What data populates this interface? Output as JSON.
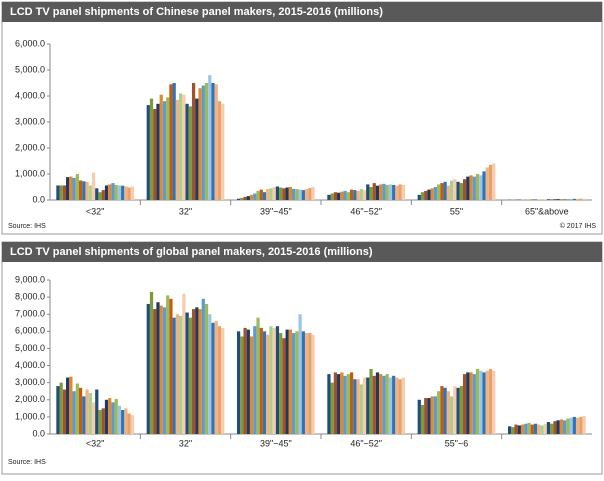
{
  "chart_data": [
    {
      "type": "bar",
      "title": "LCD TV panel shipments of Chinese panel makers, 2015-2016  (millions)",
      "categories": [
        "<32\"",
        "32\"",
        "39\"~45\"",
        "46\"~52\"",
        "55\"",
        "65\"&above"
      ],
      "ylim": [
        0,
        6000
      ],
      "yticks": [
        {
          "value": 0,
          "label": "0.0"
        },
        {
          "value": 1000,
          "label": "1,000.0"
        },
        {
          "value": 2000,
          "label": "2,000.0"
        },
        {
          "value": 3000,
          "label": "3,000.0"
        },
        {
          "value": 4000,
          "label": "4,000.0"
        },
        {
          "value": 5000,
          "label": "5,000.0"
        },
        {
          "value": 6000,
          "label": "6,000.0"
        }
      ],
      "grid": false,
      "source": "Source: IHS",
      "copyright": "© 2017 IHS",
      "series": [
        {
          "color": "#1f4e79",
          "values": [
            560,
            3650,
            50,
            200,
            200,
            10
          ]
        },
        {
          "color": "#7f9a3b",
          "values": [
            560,
            3900,
            80,
            250,
            300,
            10
          ]
        },
        {
          "color": "#a0522d",
          "values": [
            560,
            3500,
            120,
            300,
            350,
            15
          ]
        },
        {
          "color": "#1f3864",
          "values": [
            880,
            3700,
            150,
            280,
            400,
            15
          ]
        },
        {
          "color": "#e08a2e",
          "values": [
            900,
            4050,
            200,
            320,
            450,
            20
          ]
        },
        {
          "color": "#5b9bd5",
          "values": [
            850,
            3800,
            250,
            350,
            500,
            20
          ]
        },
        {
          "color": "#9bbb59",
          "values": [
            1000,
            3950,
            350,
            300,
            600,
            20
          ]
        },
        {
          "color": "#c55a11",
          "values": [
            750,
            4450,
            400,
            400,
            650,
            25
          ]
        },
        {
          "color": "#2e75b6",
          "values": [
            720,
            4500,
            300,
            380,
            700,
            25
          ]
        },
        {
          "color": "#f4b183",
          "values": [
            700,
            3850,
            420,
            350,
            550,
            25
          ]
        },
        {
          "color": "#a9d18e",
          "values": [
            560,
            4100,
            450,
            420,
            750,
            30
          ]
        },
        {
          "color": "#f8cbad",
          "values": [
            1050,
            4050,
            500,
            380,
            800,
            30
          ]
        },
        {
          "color": "#1f4e79",
          "values": [
            450,
            3700,
            520,
            600,
            700,
            30
          ]
        },
        {
          "color": "#7f9a3b",
          "values": [
            300,
            3600,
            480,
            500,
            650,
            30
          ]
        },
        {
          "color": "#a0522d",
          "values": [
            380,
            4500,
            450,
            650,
            800,
            35
          ]
        },
        {
          "color": "#1f3864",
          "values": [
            560,
            3900,
            480,
            550,
            900,
            35
          ]
        },
        {
          "color": "#e08a2e",
          "values": [
            600,
            4300,
            500,
            600,
            950,
            35
          ]
        },
        {
          "color": "#5b9bd5",
          "values": [
            650,
            4400,
            430,
            620,
            900,
            40
          ]
        },
        {
          "color": "#9bbb59",
          "values": [
            580,
            4500,
            420,
            580,
            1000,
            40
          ]
        },
        {
          "color": "#9dc3e6",
          "values": [
            560,
            4800,
            400,
            600,
            950,
            40
          ]
        },
        {
          "color": "#2e75b6",
          "values": [
            550,
            4500,
            380,
            580,
            1100,
            45
          ]
        },
        {
          "color": "#f4b183",
          "values": [
            520,
            4450,
            420,
            550,
            1250,
            45
          ]
        },
        {
          "color": "#e2a46a",
          "values": [
            480,
            3800,
            460,
            600,
            1350,
            50
          ]
        },
        {
          "color": "#f8cbad",
          "values": [
            520,
            3700,
            500,
            580,
            1400,
            50
          ]
        }
      ]
    },
    {
      "type": "bar",
      "title": "LCD TV panel shipments of global panel makers, 2015-2016 (millions)",
      "categories": [
        "<32\"",
        "32\"",
        "39\"~45\"",
        "46\"~52\"",
        "55\"~6",
        null
      ],
      "ylim": [
        0,
        9000
      ],
      "yticks": [
        {
          "value": 0,
          "label": "0.0"
        },
        {
          "value": 1000,
          "label": "1,000.0"
        },
        {
          "value": 2000,
          "label": "2,000.0"
        },
        {
          "value": 3000,
          "label": "3,000.0"
        },
        {
          "value": 4000,
          "label": "4,000.0"
        },
        {
          "value": 5000,
          "label": "5,000.0"
        },
        {
          "value": 6000,
          "label": "6,000.0"
        },
        {
          "value": 7000,
          "label": "7,000.0"
        },
        {
          "value": 8000,
          "label": "8,000.0"
        },
        {
          "value": 9000,
          "label": "9,000.0"
        }
      ],
      "grid": false,
      "source": "Source: IHS",
      "series": [
        {
          "color": "#1f4e79",
          "values": [
            2800,
            7600,
            6000,
            3500,
            2000,
            450
          ]
        },
        {
          "color": "#7f9a3b",
          "values": [
            3000,
            8300,
            5700,
            3000,
            1700,
            400
          ]
        },
        {
          "color": "#a0522d",
          "values": [
            2600,
            7300,
            6200,
            3600,
            2100,
            550
          ]
        },
        {
          "color": "#1f3864",
          "values": [
            3300,
            7700,
            6100,
            3500,
            2100,
            500
          ]
        },
        {
          "color": "#e08a2e",
          "values": [
            3350,
            7500,
            5700,
            3600,
            2200,
            550
          ]
        },
        {
          "color": "#5b9bd5",
          "values": [
            2500,
            7400,
            6300,
            3400,
            2200,
            600
          ]
        },
        {
          "color": "#9bbb59",
          "values": [
            2950,
            8100,
            6800,
            3500,
            2500,
            650
          ]
        },
        {
          "color": "#c55a11",
          "values": [
            2700,
            7900,
            6200,
            3600,
            2800,
            550
          ]
        },
        {
          "color": "#2e75b6",
          "values": [
            2200,
            6800,
            6000,
            3200,
            2700,
            600
          ]
        },
        {
          "color": "#f4b183",
          "values": [
            2600,
            7000,
            5800,
            3200,
            2500,
            550
          ]
        },
        {
          "color": "#a9d18e",
          "values": [
            2400,
            6900,
            6300,
            2900,
            2200,
            500
          ]
        },
        {
          "color": "#f8cbad",
          "values": [
            1850,
            8200,
            6200,
            3300,
            2800,
            600
          ]
        },
        {
          "color": "#1f4e79",
          "values": [
            2600,
            7100,
            6300,
            3300,
            2700,
            700
          ]
        },
        {
          "color": "#7f9a3b",
          "values": [
            1400,
            6800,
            5900,
            3800,
            2800,
            600
          ]
        },
        {
          "color": "#a0522d",
          "values": [
            1500,
            7300,
            5600,
            3400,
            3500,
            750
          ]
        },
        {
          "color": "#1f3864",
          "values": [
            2000,
            7400,
            6100,
            3600,
            3600,
            800
          ]
        },
        {
          "color": "#e08a2e",
          "values": [
            2100,
            7300,
            6100,
            3500,
            3600,
            850
          ]
        },
        {
          "color": "#5b9bd5",
          "values": [
            1850,
            7900,
            5900,
            3400,
            3500,
            800
          ]
        },
        {
          "color": "#9bbb59",
          "values": [
            2050,
            7600,
            6000,
            3500,
            3800,
            900
          ]
        },
        {
          "color": "#9dc3e6",
          "values": [
            1650,
            7000,
            7000,
            3300,
            3700,
            950
          ]
        },
        {
          "color": "#2e75b6",
          "values": [
            1400,
            6500,
            6000,
            3400,
            3600,
            1000
          ]
        },
        {
          "color": "#f4b183",
          "values": [
            1500,
            6600,
            5900,
            3300,
            3700,
            950
          ]
        },
        {
          "color": "#e2a46a",
          "values": [
            1200,
            6300,
            5900,
            3200,
            3800,
            1000
          ]
        },
        {
          "color": "#f8cbad",
          "values": [
            1100,
            6200,
            5800,
            3300,
            3700,
            1050
          ]
        }
      ]
    }
  ]
}
